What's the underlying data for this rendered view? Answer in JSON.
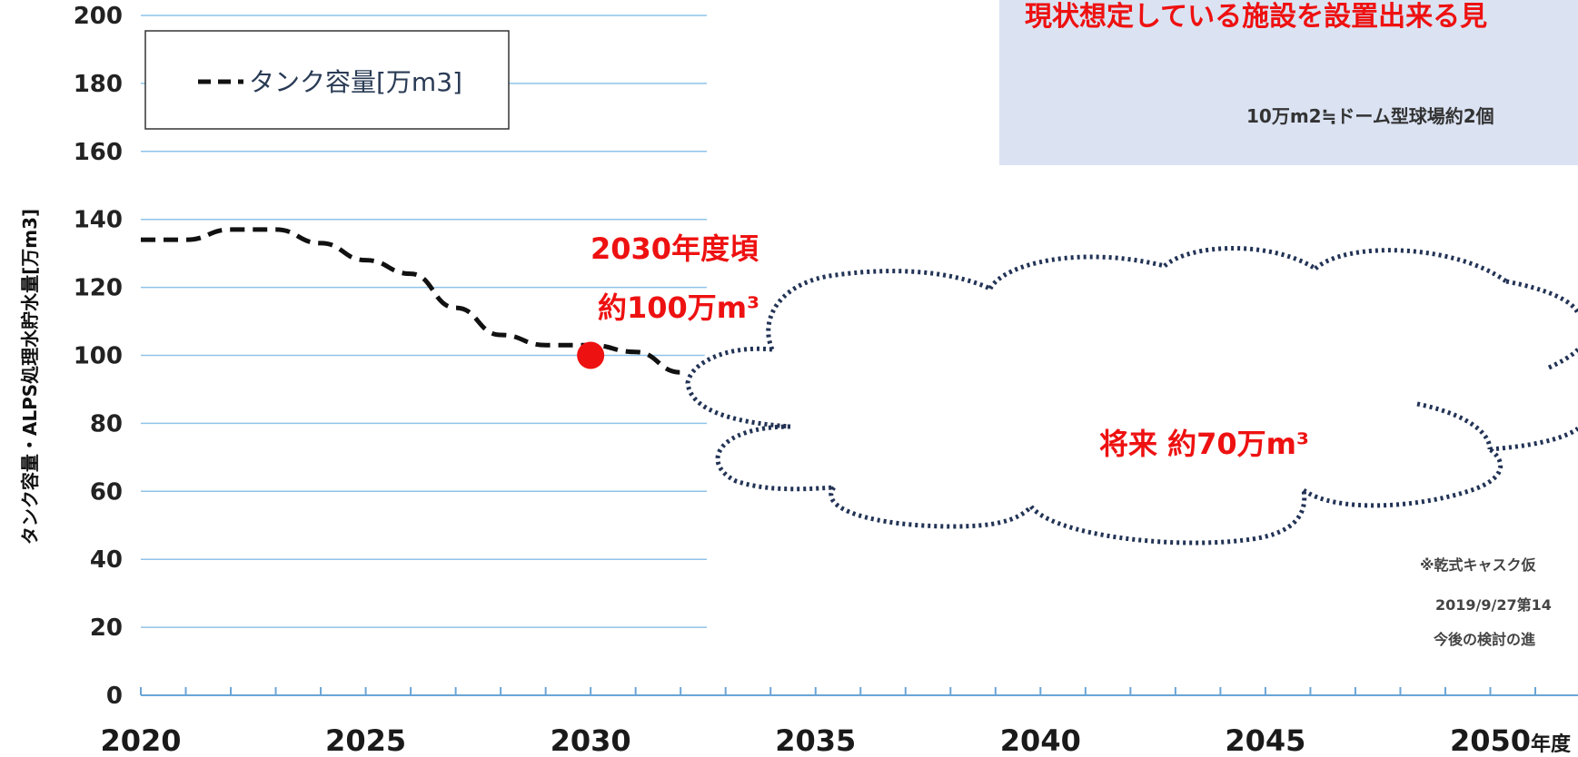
{
  "chart_data": {
    "type": "line",
    "ylabel": "タンク容量・ALPS処理水貯水量[万m3]",
    "xunit": "年度",
    "x_ticks": [
      "2020",
      "2025",
      "2030",
      "2035",
      "2040",
      "2045",
      "2050"
    ],
    "y_ticks": [
      "0",
      "20",
      "40",
      "60",
      "80",
      "100",
      "120",
      "140",
      "160",
      "180",
      "200"
    ],
    "xlim": [
      2020,
      2051
    ],
    "ylim": [
      0,
      200
    ],
    "grid": true,
    "legend_position": "top-left",
    "series": [
      {
        "name": "タンク容量[万m3]",
        "style": "dashed",
        "color": "#111111",
        "x": [
          2020,
          2021,
          2022,
          2023,
          2024,
          2025,
          2026,
          2027,
          2028,
          2029,
          2030,
          2031,
          2032
        ],
        "y": [
          134,
          134,
          137,
          137,
          133,
          128,
          124,
          114,
          106,
          103,
          103,
          101,
          95
        ]
      }
    ],
    "annotations": {
      "marker": {
        "x": 2030,
        "y": 100,
        "color": "#ee1111"
      },
      "label_2030_line1": "2030年度頃",
      "label_2030_line2": "約100万m³",
      "cloud_label": "将来 約70万m³"
    }
  },
  "note": {
    "title": "現状想定している施設を設置出来る見",
    "subtitle": "10万m2≒ドーム型球場約2個"
  },
  "footnotes": [
    "※乾式キャスク仮",
    "2019/9/27第14",
    "今後の検討の進"
  ]
}
